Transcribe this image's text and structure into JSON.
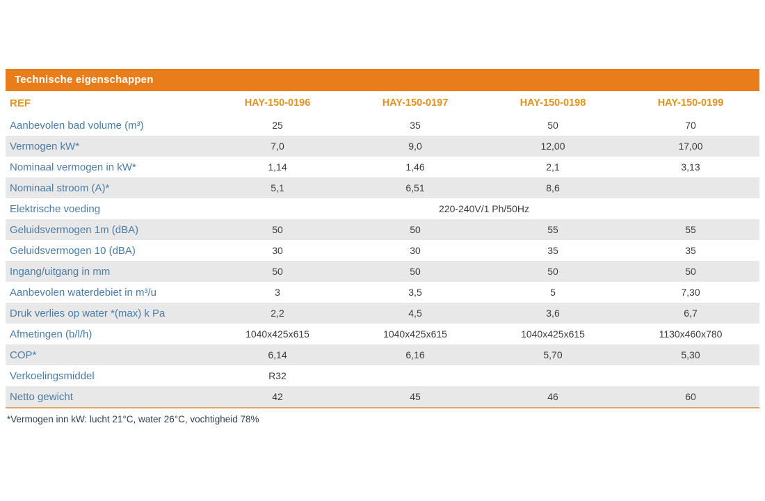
{
  "table": {
    "title": "Technische eigenschappen",
    "ref_label": "REF",
    "columns": [
      "HAY-150-0196",
      "HAY-150-0197",
      "HAY-150-0198",
      "HAY-150-0199"
    ],
    "rows": [
      {
        "label": "Aanbevolen bad volume (m³)",
        "values": [
          "25",
          "35",
          "50",
          "70"
        ]
      },
      {
        "label": "Vermogen kW*",
        "values": [
          "7,0",
          "9,0",
          "12,00",
          "17,00"
        ]
      },
      {
        "label": "Nominaal vermogen in kW*",
        "values": [
          "1,14",
          "1,46",
          "2,1",
          "3,13"
        ]
      },
      {
        "label": "Nominaal stroom (A)*",
        "values": [
          "5,1",
          "6,51",
          "8,6",
          ""
        ]
      },
      {
        "label": "Elektrische voeding",
        "merged_value": "220-240V/1 Ph/50Hz"
      },
      {
        "label": "Geluidsvermogen 1m (dBA)",
        "values": [
          "50",
          "50",
          "55",
          "55"
        ]
      },
      {
        "label": "Geluidsvermogen 10 (dBA)",
        "values": [
          "30",
          "30",
          "35",
          "35"
        ]
      },
      {
        "label": "Ingang/uitgang in mm",
        "values": [
          "50",
          "50",
          "50",
          "50"
        ]
      },
      {
        "label": "Aanbevolen waterdebiet in m³/u",
        "values": [
          "3",
          "3,5",
          "5",
          "7,30"
        ]
      },
      {
        "label": "Druk verlies op water *(max) k Pa",
        "values": [
          "2,2",
          "4,5",
          "3,6",
          "6,7"
        ]
      },
      {
        "label": "Afmetingen (b/l/h)",
        "values": [
          "1040x425x615",
          "1040x425x615",
          "1040x425x615",
          "1130x460x780"
        ]
      },
      {
        "label": "COP*",
        "values": [
          "6,14",
          "6,16",
          "5,70",
          "5,30"
        ]
      },
      {
        "label": "Verkoelingsmiddel",
        "values": [
          "R32",
          "",
          "",
          ""
        ]
      },
      {
        "label": "Netto gewicht",
        "values": [
          "42",
          "45",
          "46",
          "60"
        ]
      }
    ]
  },
  "footnote": "*Vermogen inn kW: lucht 21°C, water 26°C, vochtigheid 78%",
  "colors": {
    "title_bar_bg": "#E87D1A",
    "title_text": "#FFFFFF",
    "column_header_text": "#E0921F",
    "row_label_text": "#4A7CA6",
    "value_text": "#3C3C3C",
    "stripe_bg": "#E8E8E8",
    "bottom_rule": "#E4A55C",
    "footnote_text": "#2E4050"
  }
}
